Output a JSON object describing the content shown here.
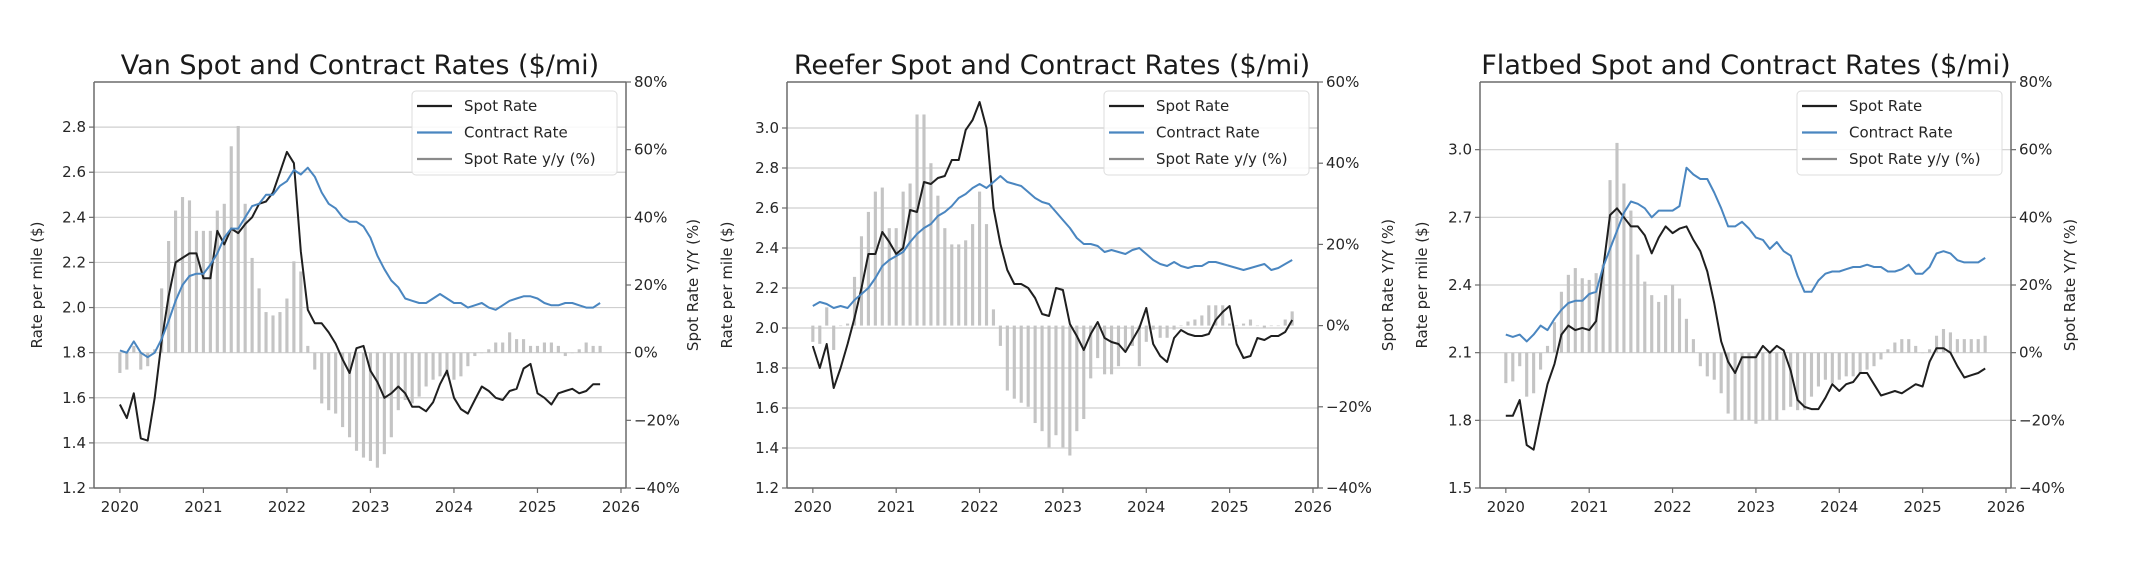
{
  "colors": {
    "spot": "#1f1f1f",
    "contract": "#4a86c0",
    "bars": "#c4c4c4",
    "grid": "#cfcfcf",
    "axis": "#6b6b6b"
  },
  "chart_data": [
    {
      "type": "line",
      "title": "Van Spot and Contract Rates ($/mi)",
      "xlabel": "",
      "ylabel": "Rate per mile ($)",
      "y2label": "Spot Rate Y/Y (%)",
      "x_start": "2020-01",
      "x_step": "month",
      "xlim": [
        2019.69,
        2026.06
      ],
      "xticks": [
        2020,
        2021,
        2022,
        2023,
        2024,
        2025,
        2026
      ],
      "xtick_labels": [
        "2020",
        "2021",
        "2022",
        "2023",
        "2024",
        "2025",
        "2026"
      ],
      "ylim": [
        1.2,
        3.0
      ],
      "yticks": [
        1.2,
        1.4,
        1.6,
        1.8,
        2.0,
        2.2,
        2.4,
        2.6,
        2.8
      ],
      "ytick_labels": [
        "1.2",
        "1.4",
        "1.6",
        "1.8",
        "2.0",
        "2.2",
        "2.4",
        "2.6",
        "2.8"
      ],
      "y2lim": [
        -40,
        80
      ],
      "y2ticks": [
        -40,
        -20,
        0,
        20,
        40,
        60,
        80
      ],
      "y2tick_labels": [
        "−40%",
        "−20%",
        "0%",
        "20%",
        "40%",
        "60%",
        "80%"
      ],
      "grid": true,
      "legend_position": "top-right",
      "legend": [
        "Spot Rate",
        "Contract Rate",
        "Spot Rate y/y (%)"
      ],
      "series": [
        {
          "name": "Spot Rate",
          "axis": "left",
          "kind": "line",
          "values": [
            1.57,
            1.51,
            1.62,
            1.42,
            1.41,
            1.6,
            1.85,
            2.05,
            2.2,
            2.22,
            2.24,
            2.24,
            2.13,
            2.13,
            2.34,
            2.28,
            2.35,
            2.33,
            2.37,
            2.4,
            2.46,
            2.47,
            2.51,
            2.6,
            2.69,
            2.64,
            2.25,
            1.99,
            1.93,
            1.93,
            1.89,
            1.84,
            1.77,
            1.71,
            1.82,
            1.83,
            1.72,
            1.67,
            1.6,
            1.62,
            1.65,
            1.62,
            1.56,
            1.56,
            1.54,
            1.58,
            1.66,
            1.72,
            1.6,
            1.55,
            1.53,
            1.59,
            1.65,
            1.63,
            1.6,
            1.59,
            1.63,
            1.64,
            1.73,
            1.75,
            1.62,
            1.6,
            1.57,
            1.62,
            1.63,
            1.64,
            1.62,
            1.63,
            1.66,
            1.66
          ]
        },
        {
          "name": "Contract Rate",
          "axis": "left",
          "kind": "line",
          "values": [
            1.81,
            1.8,
            1.85,
            1.8,
            1.78,
            1.8,
            1.86,
            1.94,
            2.03,
            2.1,
            2.14,
            2.15,
            2.15,
            2.19,
            2.24,
            2.31,
            2.35,
            2.35,
            2.4,
            2.45,
            2.46,
            2.5,
            2.5,
            2.54,
            2.56,
            2.61,
            2.59,
            2.62,
            2.58,
            2.51,
            2.46,
            2.44,
            2.4,
            2.38,
            2.38,
            2.36,
            2.31,
            2.23,
            2.17,
            2.12,
            2.09,
            2.04,
            2.03,
            2.02,
            2.02,
            2.04,
            2.06,
            2.04,
            2.02,
            2.02,
            2.0,
            2.01,
            2.02,
            2.0,
            1.99,
            2.01,
            2.03,
            2.04,
            2.05,
            2.05,
            2.04,
            2.02,
            2.01,
            2.01,
            2.02,
            2.02,
            2.01,
            2.0,
            2.0,
            2.02
          ]
        },
        {
          "name": "Spot Rate y/y (%)",
          "axis": "right",
          "kind": "bar",
          "values": [
            -6,
            -5,
            2,
            -5,
            -4,
            1,
            19,
            33,
            42,
            46,
            45,
            36,
            36,
            36,
            42,
            44,
            61,
            67,
            44,
            28,
            19,
            12,
            11,
            12,
            16,
            27,
            24,
            2,
            -5,
            -15,
            -17,
            -18,
            -22,
            -25,
            -29,
            -31,
            -32,
            -34,
            -30,
            -25,
            -17,
            -14,
            -15,
            -13,
            -10,
            -8,
            -7,
            -7,
            -8,
            -7,
            -4,
            -1,
            0,
            1,
            3,
            3,
            6,
            4,
            4,
            2,
            2,
            3,
            3,
            2,
            -1,
            0,
            1,
            3,
            2,
            2
          ]
        }
      ]
    },
    {
      "type": "line",
      "title": "Reefer Spot and Contract Rates ($/mi)",
      "xlabel": "",
      "ylabel": "Rate per mile ($)",
      "y2label": "Spot Rate Y/Y (%)",
      "x_start": "2020-01",
      "x_step": "month",
      "xlim": [
        2019.69,
        2026.06
      ],
      "xticks": [
        2020,
        2021,
        2022,
        2023,
        2024,
        2025,
        2026
      ],
      "xtick_labels": [
        "2020",
        "2021",
        "2022",
        "2023",
        "2024",
        "2025",
        "2026"
      ],
      "ylim": [
        1.2,
        3.23
      ],
      "yticks": [
        1.2,
        1.4,
        1.6,
        1.8,
        2.0,
        2.2,
        2.4,
        2.6,
        2.8,
        3.0
      ],
      "ytick_labels": [
        "1.2",
        "1.4",
        "1.6",
        "1.8",
        "2.0",
        "2.2",
        "2.4",
        "2.6",
        "2.8",
        "3.0"
      ],
      "y2lim": [
        -40,
        60
      ],
      "y2ticks": [
        -40,
        -20,
        0,
        20,
        40,
        60
      ],
      "y2tick_labels": [
        "−40%",
        "−20%",
        "0%",
        "20%",
        "40%",
        "60%"
      ],
      "grid": true,
      "legend_position": "top-right",
      "legend": [
        "Spot Rate",
        "Contract Rate",
        "Spot Rate y/y (%)"
      ],
      "series": [
        {
          "name": "Spot Rate",
          "axis": "left",
          "kind": "line",
          "values": [
            1.91,
            1.8,
            1.92,
            1.7,
            1.8,
            1.92,
            2.05,
            2.2,
            2.37,
            2.37,
            2.48,
            2.43,
            2.37,
            2.4,
            2.59,
            2.58,
            2.73,
            2.72,
            2.75,
            2.76,
            2.84,
            2.84,
            2.99,
            3.04,
            3.13,
            3.0,
            2.6,
            2.42,
            2.29,
            2.22,
            2.22,
            2.2,
            2.15,
            2.07,
            2.06,
            2.2,
            2.19,
            2.02,
            1.96,
            1.89,
            1.97,
            2.03,
            1.95,
            1.93,
            1.92,
            1.88,
            1.94,
            2.0,
            2.1,
            1.92,
            1.86,
            1.83,
            1.95,
            1.99,
            1.97,
            1.96,
            1.96,
            1.97,
            2.04,
            2.08,
            2.11,
            1.92,
            1.85,
            1.86,
            1.95,
            1.94,
            1.96,
            1.96,
            1.98,
            2.04
          ]
        },
        {
          "name": "Contract Rate",
          "axis": "left",
          "kind": "line",
          "values": [
            2.11,
            2.13,
            2.12,
            2.1,
            2.11,
            2.1,
            2.14,
            2.17,
            2.2,
            2.25,
            2.31,
            2.34,
            2.36,
            2.38,
            2.43,
            2.47,
            2.5,
            2.52,
            2.56,
            2.58,
            2.61,
            2.65,
            2.67,
            2.7,
            2.72,
            2.7,
            2.73,
            2.76,
            2.73,
            2.72,
            2.71,
            2.68,
            2.65,
            2.63,
            2.62,
            2.58,
            2.54,
            2.5,
            2.45,
            2.42,
            2.42,
            2.41,
            2.38,
            2.39,
            2.38,
            2.37,
            2.39,
            2.4,
            2.37,
            2.34,
            2.32,
            2.31,
            2.33,
            2.31,
            2.3,
            2.31,
            2.31,
            2.33,
            2.33,
            2.32,
            2.31,
            2.3,
            2.29,
            2.3,
            2.31,
            2.32,
            2.29,
            2.3,
            2.32,
            2.34
          ]
        },
        {
          "name": "Spot Rate y/y (%)",
          "axis": "right",
          "kind": "bar",
          "values": [
            -4,
            -4.5,
            4.5,
            -6,
            0,
            0.5,
            12,
            22,
            28,
            33,
            34,
            24,
            24,
            33,
            35,
            52,
            52,
            40,
            32,
            24,
            20,
            20,
            21,
            25,
            33,
            25,
            4,
            -5,
            -16,
            -18,
            -19,
            -20,
            -24,
            -26,
            -30,
            -27,
            -30,
            -32,
            -26,
            -23,
            -13,
            -8,
            -12,
            -12,
            -10,
            -6,
            -5,
            -10,
            -4,
            -1,
            -3,
            -3,
            -1,
            0,
            1,
            1.5,
            2.5,
            5,
            5,
            5,
            0.5,
            0,
            0.5,
            1.5,
            0,
            -0.5,
            0,
            0,
            1.5,
            3.5
          ]
        }
      ]
    },
    {
      "type": "line",
      "title": "Flatbed Spot and Contract Rates ($/mi)",
      "xlabel": "",
      "ylabel": "Rate per mile ($)",
      "y2label": "Spot Rate Y/Y (%)",
      "x_start": "2020-01",
      "x_step": "month",
      "xlim": [
        2019.69,
        2026.06
      ],
      "xticks": [
        2020,
        2021,
        2022,
        2023,
        2024,
        2025,
        2026
      ],
      "xtick_labels": [
        "2020",
        "2021",
        "2022",
        "2023",
        "2024",
        "2025",
        "2026"
      ],
      "ylim": [
        1.5,
        3.3
      ],
      "yticks": [
        1.5,
        1.8,
        2.1,
        2.4,
        2.7,
        3.0
      ],
      "ytick_labels": [
        "1.5",
        "1.8",
        "2.1",
        "2.4",
        "2.7",
        "3.0"
      ],
      "y2lim": [
        -40,
        80
      ],
      "y2ticks": [
        -40,
        -20,
        0,
        20,
        40,
        60,
        80
      ],
      "y2tick_labels": [
        "−40%",
        "−20%",
        "0%",
        "20%",
        "40%",
        "60%",
        "80%"
      ],
      "grid": true,
      "legend_position": "top-right",
      "legend": [
        "Spot Rate",
        "Contract Rate",
        "Spot Rate y/y (%)"
      ],
      "series": [
        {
          "name": "Spot Rate",
          "axis": "left",
          "kind": "line",
          "values": [
            1.82,
            1.82,
            1.89,
            1.69,
            1.67,
            1.82,
            1.96,
            2.05,
            2.18,
            2.22,
            2.2,
            2.21,
            2.2,
            2.24,
            2.47,
            2.71,
            2.74,
            2.7,
            2.66,
            2.66,
            2.62,
            2.54,
            2.61,
            2.66,
            2.63,
            2.65,
            2.66,
            2.6,
            2.55,
            2.46,
            2.32,
            2.15,
            2.06,
            2.01,
            2.08,
            2.08,
            2.08,
            2.13,
            2.1,
            2.13,
            2.11,
            2.02,
            1.89,
            1.86,
            1.85,
            1.85,
            1.9,
            1.96,
            1.93,
            1.96,
            1.97,
            2.01,
            2.01,
            1.96,
            1.91,
            1.92,
            1.93,
            1.92,
            1.94,
            1.96,
            1.95,
            2.06,
            2.12,
            2.12,
            2.1,
            2.04,
            1.99,
            2.0,
            2.01,
            2.03
          ]
        },
        {
          "name": "Contract Rate",
          "axis": "left",
          "kind": "line",
          "values": [
            2.18,
            2.17,
            2.18,
            2.15,
            2.18,
            2.22,
            2.2,
            2.25,
            2.29,
            2.32,
            2.33,
            2.33,
            2.36,
            2.37,
            2.48,
            2.56,
            2.64,
            2.72,
            2.77,
            2.76,
            2.74,
            2.7,
            2.73,
            2.73,
            2.73,
            2.75,
            2.92,
            2.89,
            2.87,
            2.87,
            2.81,
            2.74,
            2.66,
            2.66,
            2.68,
            2.65,
            2.61,
            2.6,
            2.56,
            2.59,
            2.55,
            2.53,
            2.44,
            2.37,
            2.37,
            2.42,
            2.45,
            2.46,
            2.46,
            2.47,
            2.48,
            2.48,
            2.49,
            2.48,
            2.48,
            2.46,
            2.46,
            2.47,
            2.49,
            2.45,
            2.45,
            2.48,
            2.54,
            2.55,
            2.54,
            2.51,
            2.5,
            2.5,
            2.5,
            2.52
          ]
        },
        {
          "name": "Spot Rate y/y (%)",
          "axis": "right",
          "kind": "bar",
          "values": [
            -9,
            -8.5,
            -4,
            -13,
            -12,
            -5,
            2,
            9,
            18,
            23,
            25,
            22,
            21.5,
            23.5,
            26,
            51,
            62,
            50,
            42,
            29,
            21,
            17,
            15,
            17,
            20,
            16,
            10,
            4,
            -4,
            -7,
            -8,
            -12,
            -18,
            -20,
            -20,
            -20,
            -21,
            -20,
            -20,
            -20,
            -17,
            -16,
            -17,
            -17,
            -13,
            -10,
            -8,
            -9,
            -8,
            -7,
            -7,
            -6,
            -5,
            -4,
            -2,
            1,
            3,
            4,
            4,
            2,
            0,
            1,
            5,
            7,
            6,
            4,
            4,
            4,
            4,
            5
          ]
        }
      ]
    }
  ]
}
